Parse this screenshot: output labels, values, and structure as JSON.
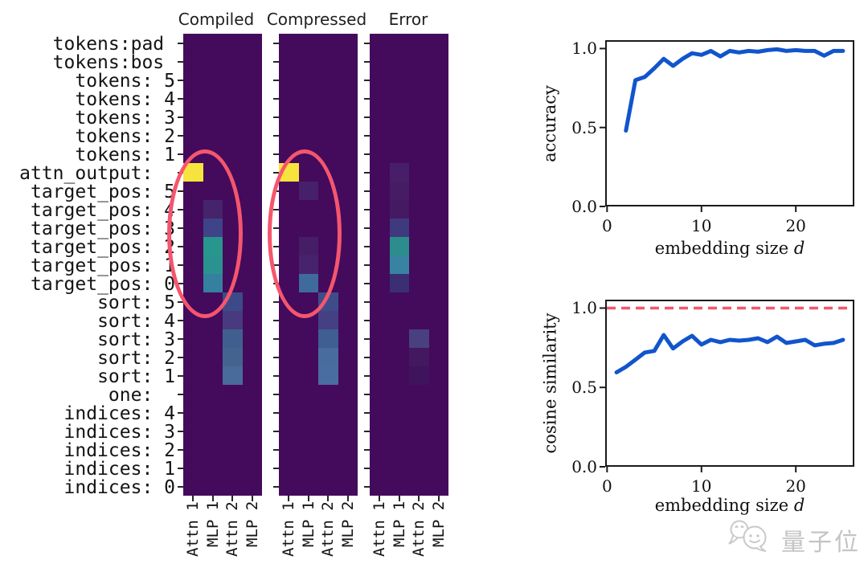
{
  "figure": {
    "panels": [
      {
        "title": "Compiled",
        "cells": [
          [
            7,
            0,
            "#f6e33d"
          ],
          [
            9,
            1,
            "#45246b"
          ],
          [
            10,
            1,
            "#3e4487"
          ],
          [
            11,
            1,
            "#27968d"
          ],
          [
            12,
            1,
            "#2b938f"
          ],
          [
            13,
            1,
            "#35809e"
          ],
          [
            14,
            2,
            "#3d4a88"
          ],
          [
            15,
            2,
            "#483a7e"
          ],
          [
            16,
            2,
            "#415f8e"
          ],
          [
            17,
            2,
            "#44648f"
          ],
          [
            18,
            2,
            "#486b9b"
          ]
        ]
      },
      {
        "title": "Compressed",
        "cells": [
          [
            7,
            0,
            "#f6e33d"
          ],
          [
            8,
            1,
            "#47206a"
          ],
          [
            11,
            1,
            "#461e66"
          ],
          [
            12,
            1,
            "#48236d"
          ],
          [
            13,
            1,
            "#3e6a9c"
          ],
          [
            14,
            2,
            "#3e4c8a"
          ],
          [
            15,
            2,
            "#454084"
          ],
          [
            16,
            2,
            "#3f5e92"
          ],
          [
            17,
            2,
            "#496c9e"
          ],
          [
            18,
            2,
            "#4a6da0"
          ]
        ]
      },
      {
        "title": "Error",
        "cells": [
          [
            7,
            1,
            "#471f68"
          ],
          [
            8,
            1,
            "#461c65"
          ],
          [
            9,
            1,
            "#451a62"
          ],
          [
            10,
            1,
            "#3f3a7d"
          ],
          [
            11,
            1,
            "#2b8d8c"
          ],
          [
            12,
            1,
            "#3883a2"
          ],
          [
            13,
            1,
            "#3b2e72"
          ],
          [
            16,
            2,
            "#494080"
          ],
          [
            17,
            2,
            "#43185f"
          ],
          [
            18,
            2,
            "#40145c"
          ]
        ]
      }
    ],
    "row_labels": [
      "tokens:pad ",
      "tokens:bos ",
      "tokens: 5",
      "tokens: 4",
      "tokens: 3",
      "tokens: 2",
      "tokens: 1",
      "attn_output:  ",
      "target_pos: 5",
      "target_pos: 4",
      "target_pos: 3",
      "target_pos: 2",
      "target_pos: 1",
      "target_pos: 0",
      "sort: 5",
      "sort: 4",
      "sort: 3",
      "sort: 2",
      "sort: 1",
      "one:  ",
      "indices: 4",
      "indices: 3",
      "indices: 2",
      "indices: 1",
      "indices: 0"
    ],
    "col_labels": [
      "Attn 1",
      "MLP 1",
      "Attn 2",
      "MLP 2"
    ],
    "colors": {
      "background": "#440a5c",
      "annotation": "#f4566e",
      "cell_max": "#f6e33d",
      "tick": "#262626"
    }
  },
  "chart_data": [
    {
      "type": "line",
      "ylabel": "accuracy",
      "xlabel": "embedding size",
      "xlabel_var": "d",
      "x": [
        2,
        3,
        4,
        5,
        6,
        7,
        8,
        9,
        10,
        11,
        12,
        13,
        14,
        15,
        16,
        17,
        18,
        19,
        20,
        21,
        22,
        23,
        24,
        25
      ],
      "y": [
        0.48,
        0.8,
        0.82,
        0.875,
        0.935,
        0.89,
        0.935,
        0.97,
        0.96,
        0.985,
        0.95,
        0.985,
        0.975,
        0.985,
        0.98,
        0.99,
        0.995,
        0.985,
        0.99,
        0.985,
        0.985,
        0.955,
        0.985,
        0.985
      ],
      "xticks": [
        0,
        10,
        20
      ],
      "ytick_vals": [
        0.0,
        0.5,
        1.0
      ],
      "ytick_labels": [
        "0.0",
        "0.5",
        "1.0"
      ],
      "xlim": [
        -0.2,
        26.2
      ],
      "ylim": [
        0,
        1.053
      ],
      "grid": false,
      "line_color": "#1155cc"
    },
    {
      "type": "line",
      "ylabel": "cosine similarity",
      "xlabel": "embedding size",
      "xlabel_var": "d",
      "x": [
        1,
        2,
        3,
        4,
        5,
        6,
        7,
        8,
        9,
        10,
        11,
        12,
        13,
        14,
        15,
        16,
        17,
        18,
        19,
        20,
        21,
        22,
        23,
        24,
        25
      ],
      "y": [
        0.595,
        0.63,
        0.675,
        0.72,
        0.73,
        0.83,
        0.745,
        0.79,
        0.825,
        0.77,
        0.8,
        0.785,
        0.8,
        0.795,
        0.8,
        0.81,
        0.785,
        0.82,
        0.78,
        0.79,
        0.8,
        0.765,
        0.775,
        0.78,
        0.8
      ],
      "xticks": [
        0,
        10,
        20
      ],
      "ytick_vals": [
        0.0,
        0.5,
        1.0
      ],
      "ytick_labels": [
        "0.0",
        "0.5",
        "1.0"
      ],
      "xlim": [
        -0.2,
        26.2
      ],
      "ylim": [
        0,
        1.053
      ],
      "grid": false,
      "line_color": "#1155cc",
      "ref_line": {
        "y": 1.0,
        "color": "#f4566e",
        "style": "dashed"
      }
    }
  ],
  "watermark": {
    "text": "量子位",
    "color": "#c4c4c4",
    "logo": "qbitai-chat-bubbles"
  }
}
